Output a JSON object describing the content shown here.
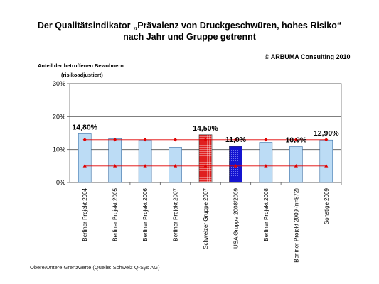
{
  "title_line1": "Der Qualitätsindikator „Prävalenz von Druckgeschwüren, hohes Risiko“",
  "title_line2": "nach Jahr und Gruppe getrennt",
  "copyright": "© ARBUMA Consulting 2010",
  "ylabel_line1": "Anteil der betroffenen Bewohnern",
  "ylabel_line2": "(risikoadjustiert)",
  "footnote": "Obere/Untere Grenzwerte (Quelle: Schweiz Q-Sys AG)",
  "chart_data": {
    "type": "bar",
    "title": "Der Qualitätsindikator „Prävalenz von Druckgeschwüren, hohes Risiko“ nach Jahr und Gruppe getrennt",
    "ylabel": "Anteil der betroffenen Bewohnern (risikoadjustiert)",
    "xlabel": "",
    "ylim": [
      0,
      30
    ],
    "yticks": [
      "0%",
      "10%",
      "20%",
      "30%"
    ],
    "grid": true,
    "categories": [
      "Berliner Projekt 2004",
      "Berliner Projekt 2005",
      "Berliner Projekt 2006",
      "Berliner Projekt 2007",
      "Schweizer Gruppe 2007",
      "USA Gruppe 2008/2009",
      "Berliner Projekt 2008",
      "Berliner Projekt 2009 (n=872)",
      "Sonstige 2009"
    ],
    "values": [
      14.8,
      13.3,
      12.9,
      10.7,
      14.5,
      11.0,
      12.2,
      10.9,
      12.9
    ],
    "bar_styles": [
      "light-blue",
      "light-blue",
      "light-blue",
      "light-blue",
      "red-grid",
      "blue-dots",
      "light-blue",
      "light-blue",
      "light-blue"
    ],
    "data_labels": [
      "14,80%",
      "",
      "",
      "",
      "14,50%",
      "11,0%",
      "",
      "10,9%",
      "12,90%"
    ],
    "upper_limit": 13.0,
    "lower_limit": 5.0,
    "limit_legend": "Obere/Untere Grenzwerte (Quelle: Schweiz Q-Sys AG)",
    "colors": {
      "bar": "#bcdcf5",
      "bar_stroke": "#3b6fa6",
      "swiss": "#e02020",
      "usa": "#1414d0",
      "limits": "#e00000"
    }
  }
}
